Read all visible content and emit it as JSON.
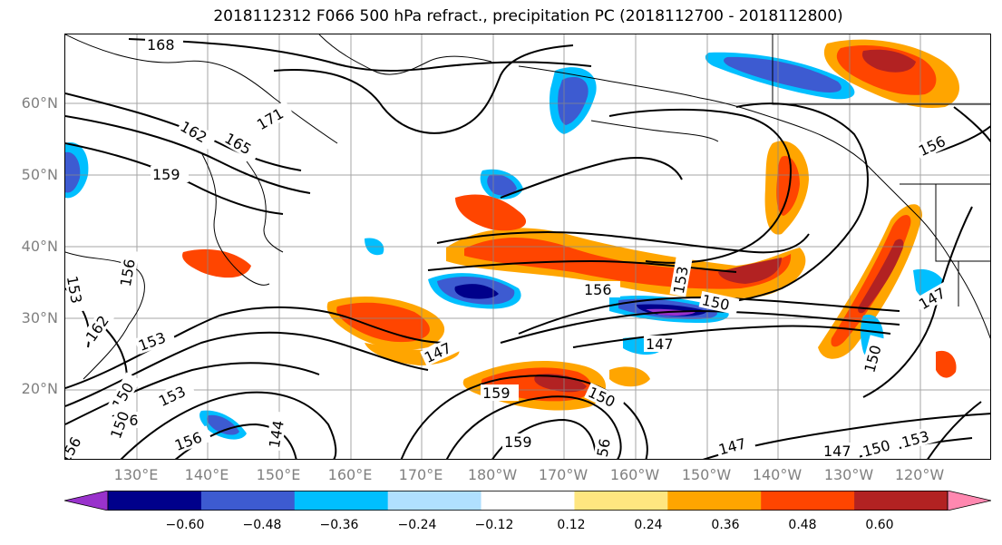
{
  "title": "2018112312 F066 500 hPa refract., precipitation PC (2018112700 - 2018112800)",
  "lat_labels": [
    "60°N",
    "50°N",
    "40°N",
    "30°N",
    "20°N"
  ],
  "lon_labels": [
    "130°E",
    "140°E",
    "150°E",
    "160°E",
    "170°E",
    "180°W",
    "170°W",
    "160°W",
    "150°W",
    "140°W",
    "130°W",
    "120°W"
  ],
  "colorbar": {
    "ticks": [
      "−0.60",
      "−0.48",
      "−0.36",
      "−0.24",
      "−0.12",
      "0.12",
      "0.24",
      "0.36",
      "0.48",
      "0.60"
    ],
    "colors": [
      "#9932cc",
      "#00008b",
      "#3d5bd1",
      "#00bfff",
      "#b0e0ff",
      "#ffffff",
      "#ffe680",
      "#ffa500",
      "#ff4500",
      "#b22222",
      "#ff88b0"
    ]
  },
  "contour_labels": [
    "168",
    "171",
    "162",
    "165",
    "159",
    "156",
    "153",
    "150",
    "147",
    "144",
    "162",
    "153",
    "156",
    "156",
    "153",
    "147",
    "147",
    "159",
    "159",
    "150",
    "156",
    "147",
    "150",
    "153",
    "150",
    "147",
    "156",
    "150",
    "156",
    "153",
    "150",
    "156"
  ]
}
